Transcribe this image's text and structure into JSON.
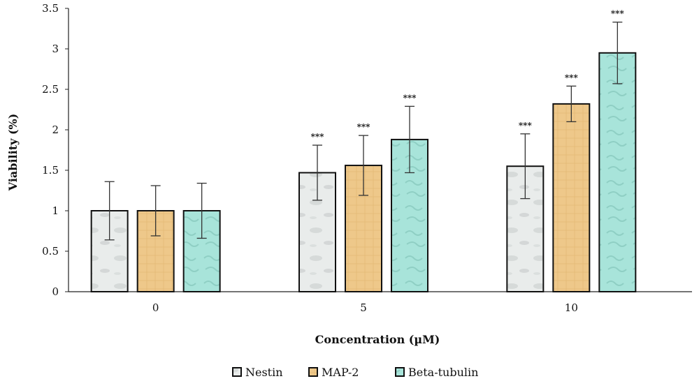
{
  "chart_data": {
    "type": "bar",
    "xlabel": "Concentration (µM)",
    "ylabel": "Viability (%)",
    "ylim": [
      0,
      3.5
    ],
    "yticks": [
      "0",
      "0.5",
      "1",
      "1.5",
      "2",
      "2.5",
      "3",
      "3.5"
    ],
    "categories": [
      "0",
      "5",
      "10"
    ],
    "grid": false,
    "legend_position": "bottom",
    "series": [
      {
        "name": "Nestin",
        "color": "#e8ebea",
        "values": [
          1.0,
          1.47,
          1.55
        ],
        "error": [
          0.36,
          0.34,
          0.4
        ],
        "significance": [
          "",
          "***",
          "***"
        ]
      },
      {
        "name": "MAP-2",
        "color": "#ecc88c",
        "values": [
          1.0,
          1.56,
          2.32
        ],
        "error": [
          0.31,
          0.37,
          0.22
        ],
        "significance": [
          "",
          "***",
          "***"
        ]
      },
      {
        "name": "Beta-tubulin",
        "color": "#a6e3d9",
        "values": [
          1.0,
          1.88,
          2.95
        ],
        "error": [
          0.34,
          0.41,
          0.38
        ],
        "significance": [
          "",
          "***",
          "***"
        ]
      }
    ]
  }
}
